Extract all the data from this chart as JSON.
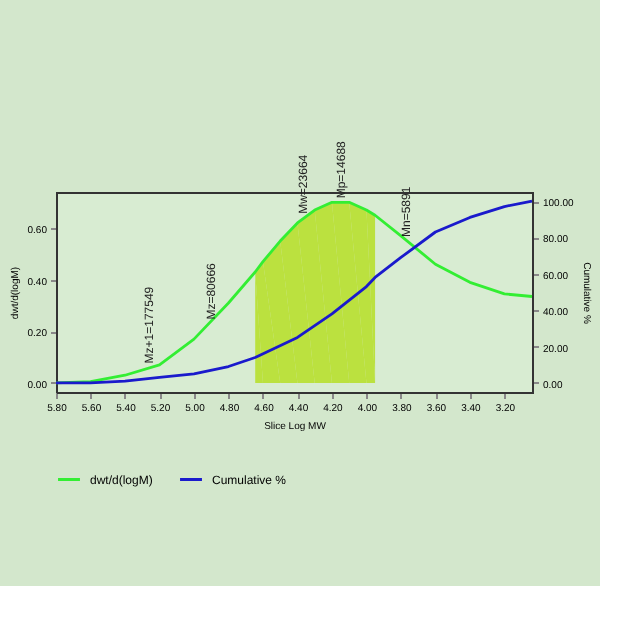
{
  "chart_data": {
    "type": "line",
    "xlabel": "Slice Log MW",
    "ylabel": "dwt/d(logM)",
    "y2label": "Cumulative %",
    "xlim": [
      5.8,
      3.04
    ],
    "xticks": [
      {
        "value": 5.8,
        "label": "5.80"
      },
      {
        "value": 5.6,
        "label": "5.60"
      },
      {
        "value": 5.4,
        "label": "5.40"
      },
      {
        "value": 5.2,
        "label": "5.20"
      },
      {
        "value": 5.0,
        "label": "5.00"
      },
      {
        "value": 4.8,
        "label": "4.80"
      },
      {
        "value": 4.6,
        "label": "4.60"
      },
      {
        "value": 4.4,
        "label": "4.40"
      },
      {
        "value": 4.2,
        "label": "4.20"
      },
      {
        "value": 4.0,
        "label": "4.00"
      },
      {
        "value": 3.8,
        "label": "3.80"
      },
      {
        "value": 3.6,
        "label": "3.60"
      },
      {
        "value": 3.4,
        "label": "3.40"
      },
      {
        "value": 3.2,
        "label": "3.20"
      }
    ],
    "ylim": [
      -0.035,
      0.74
    ],
    "yticks": [
      {
        "value": 0,
        "label": "0.00"
      },
      {
        "value": 0.2,
        "label": "0.20"
      },
      {
        "value": 0.4,
        "label": "0.40"
      },
      {
        "value": 0.6,
        "label": "0.60"
      }
    ],
    "y2lim": [
      -5,
      105
    ],
    "y2ticks": [
      {
        "value": 0,
        "label": "0.00"
      },
      {
        "value": 20,
        "label": "20.00"
      },
      {
        "value": 40,
        "label": "40.00"
      },
      {
        "value": 60,
        "label": "60.00"
      },
      {
        "value": 80,
        "label": "80.00"
      },
      {
        "value": 100,
        "label": "100.00"
      }
    ],
    "grid": false,
    "legend": "bottom",
    "marker": "none",
    "line_style": "solid",
    "series": [
      {
        "type": "area",
        "color": "#b5de1e",
        "x": [
          4.645,
          4.6,
          4.5,
          4.4,
          4.3,
          4.2,
          4.1,
          4.0,
          3.95
        ],
        "values": [
          0.43,
          0.47,
          0.55,
          0.62,
          0.67,
          0.7,
          0.7,
          0.67,
          0.65
        ]
      },
      {
        "name": "dwt/d(logM)",
        "color": "#33ee33",
        "x": [
          5.8,
          5.6,
          5.4,
          5.2,
          5.0,
          4.8,
          4.645,
          4.6,
          4.5,
          4.4,
          4.3,
          4.2,
          4.1,
          4.0,
          3.95,
          3.8,
          3.6,
          3.4,
          3.2,
          3.04
        ],
        "values": [
          0,
          0.005,
          0.03,
          0.07,
          0.17,
          0.31,
          0.43,
          0.47,
          0.55,
          0.62,
          0.67,
          0.7,
          0.7,
          0.67,
          0.65,
          0.57,
          0.46,
          0.39,
          0.345,
          0.335
        ]
      },
      {
        "name": "Cumulative %",
        "axis": "y2",
        "color": "#1a1acc",
        "x": [
          5.8,
          5.6,
          5.4,
          5.2,
          5.0,
          4.8,
          4.645,
          4.4,
          4.2,
          4.0,
          3.95,
          3.8,
          3.6,
          3.4,
          3.2,
          3.04
        ],
        "values": [
          0,
          0,
          1,
          3,
          5,
          9,
          14,
          25,
          38,
          53,
          58,
          69,
          83,
          91,
          97,
          100
        ]
      }
    ],
    "annotations": [
      {
        "text": "Mz+1=177549",
        "x": 5.26,
        "y": 0.06
      },
      {
        "text": "Mz=80666",
        "x": 4.9,
        "y": 0.23
      },
      {
        "text": "Mw=23664",
        "x": 4.37,
        "y": 0.64
      },
      {
        "text": "Mp=14688",
        "x": 4.15,
        "y": 0.7
      },
      {
        "text": "Mn=5891",
        "x": 3.77,
        "y": 0.55
      }
    ]
  }
}
